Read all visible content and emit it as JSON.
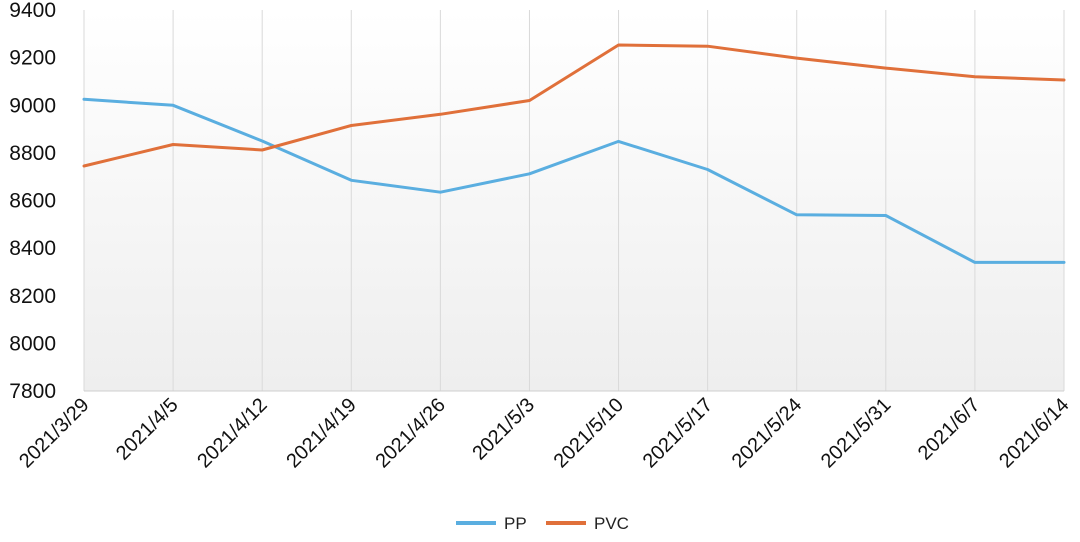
{
  "chart_data": {
    "type": "line",
    "categories": [
      "2021/3/29",
      "2021/4/5",
      "2021/4/12",
      "2021/4/19",
      "2021/4/26",
      "2021/5/3",
      "2021/5/10",
      "2021/5/17",
      "2021/5/24",
      "2021/5/31",
      "2021/6/7",
      "2021/6/14"
    ],
    "series": [
      {
        "name": "PP",
        "color": "#5aaee0",
        "values": [
          9025,
          9000,
          8850,
          8685,
          8635,
          8712,
          8848,
          8730,
          8540,
          8537,
          8340,
          8340
        ]
      },
      {
        "name": "PVC",
        "color": "#e0703a",
        "values": [
          8745,
          8835,
          8812,
          8915,
          8962,
          9020,
          9253,
          9248,
          9198,
          9156,
          9120,
          9106
        ]
      }
    ],
    "ylim": [
      7800,
      9400
    ],
    "yticks": [
      7800,
      8000,
      8200,
      8400,
      8600,
      8800,
      9000,
      9200,
      9400
    ],
    "grid": "vertical",
    "legend": "bottom-center",
    "title": "",
    "xlabel": "",
    "ylabel": ""
  }
}
